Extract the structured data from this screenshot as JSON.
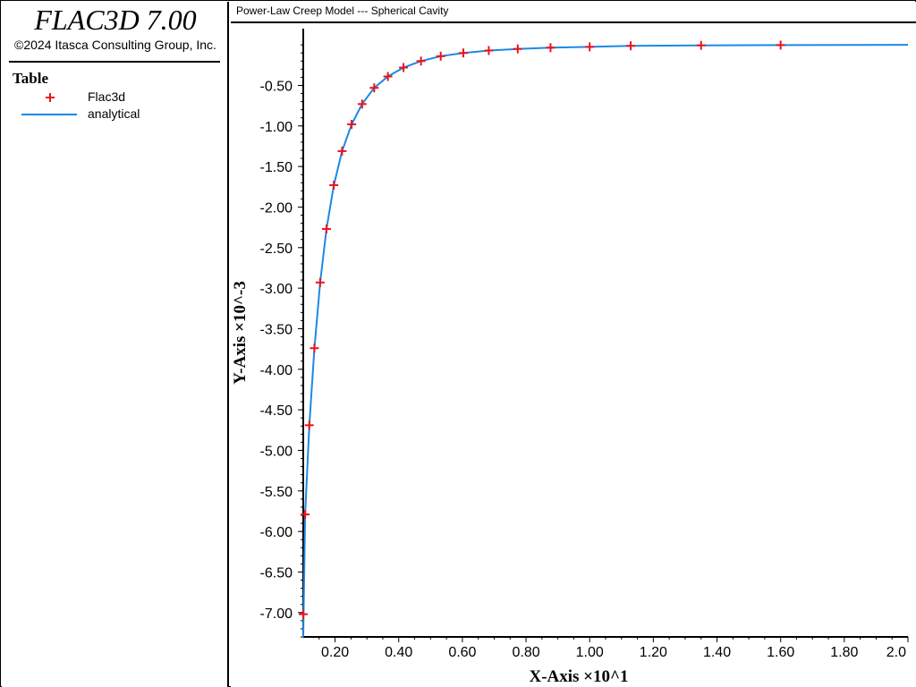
{
  "app": {
    "title": "FLAC3D 7.00",
    "copyright": "©2024 Itasca Consulting Group, Inc."
  },
  "legend": {
    "title": "Table",
    "items": [
      {
        "label": "Flac3d",
        "symbol": "plus",
        "color": "#e8141e"
      },
      {
        "label": "analytical",
        "symbol": "line",
        "color": "#1e88e5"
      }
    ]
  },
  "chart_data": {
    "type": "line",
    "title": "Power-Law Creep Model --- Spherical Cavity",
    "xlabel": "X-Axis ×10^1",
    "ylabel": "Y-Axis ×10^-3",
    "xlim": [
      0.1,
      2.0
    ],
    "ylim": [
      -7.3,
      0.2
    ],
    "x_ticks": [
      "0.20",
      "0.40",
      "0.60",
      "0.80",
      "1.00",
      "1.20",
      "1.40",
      "1.60",
      "1.80",
      "2.0"
    ],
    "x_tick_values": [
      0.2,
      0.4,
      0.6,
      0.8,
      1.0,
      1.2,
      1.4,
      1.6,
      1.8,
      2.0
    ],
    "y_ticks": [
      "-0.50",
      "-1.00",
      "-1.50",
      "-2.00",
      "-2.50",
      "-3.00",
      "-3.50",
      "-4.00",
      "-4.50",
      "-5.00",
      "-5.50",
      "-6.00",
      "-6.50",
      "-7.00"
    ],
    "y_tick_values": [
      -0.5,
      -1.0,
      -1.5,
      -2.0,
      -2.5,
      -3.0,
      -3.5,
      -4.0,
      -4.5,
      -5.0,
      -5.5,
      -6.0,
      -6.5,
      -7.0
    ],
    "grid": false,
    "series": [
      {
        "name": "Flac3d",
        "style": "markers",
        "color": "#e8141e",
        "x": [
          0.1,
          0.106,
          0.119,
          0.135,
          0.153,
          0.173,
          0.196,
          0.222,
          0.252,
          0.285,
          0.323,
          0.366,
          0.415,
          0.47,
          0.532,
          0.603,
          0.683,
          0.774,
          0.877,
          1.0,
          1.129,
          1.35,
          1.6
        ],
        "y": [
          -7.02,
          -5.79,
          -4.69,
          -3.74,
          -2.93,
          -2.27,
          -1.73,
          -1.31,
          -0.98,
          -0.73,
          -0.53,
          -0.39,
          -0.28,
          -0.2,
          -0.14,
          -0.1,
          -0.07,
          -0.05,
          -0.035,
          -0.025,
          -0.012,
          -0.006,
          -0.003
        ]
      },
      {
        "name": "analytical",
        "style": "line",
        "color": "#1e88e5",
        "x": [
          0.1,
          0.106,
          0.119,
          0.135,
          0.153,
          0.173,
          0.196,
          0.222,
          0.252,
          0.285,
          0.323,
          0.366,
          0.415,
          0.47,
          0.532,
          0.603,
          0.683,
          0.774,
          0.877,
          1.0,
          1.129,
          1.35,
          1.6,
          2.0
        ],
        "y": [
          -7.3,
          -5.79,
          -4.69,
          -3.74,
          -2.93,
          -2.27,
          -1.73,
          -1.31,
          -0.98,
          -0.73,
          -0.53,
          -0.39,
          -0.28,
          -0.2,
          -0.14,
          -0.1,
          -0.07,
          -0.05,
          -0.035,
          -0.025,
          -0.012,
          -0.006,
          -0.003,
          0.0
        ]
      }
    ]
  }
}
